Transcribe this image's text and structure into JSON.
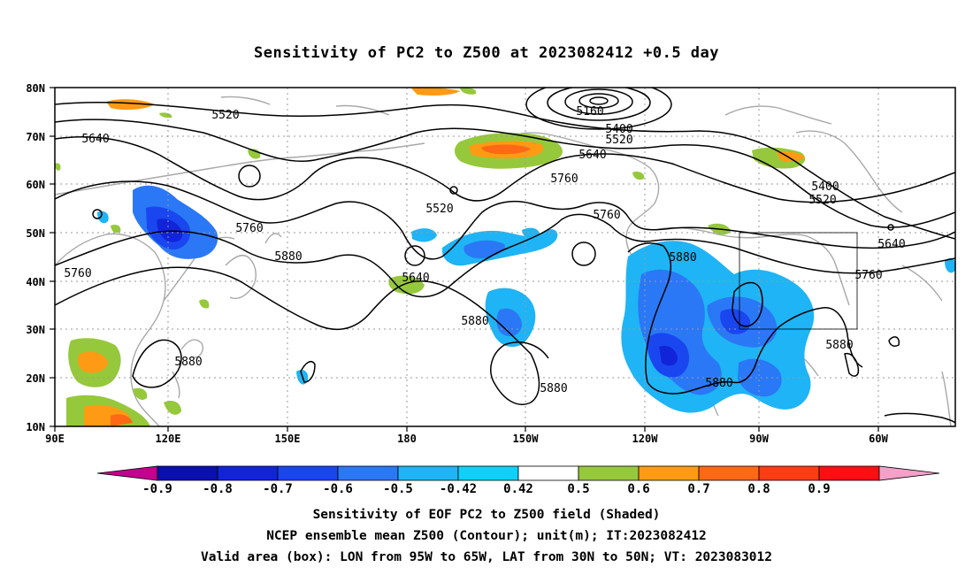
{
  "title": "Sensitivity of PC2 to Z500 at 2023082412 +0.5 day",
  "lat_labels": [
    "80N",
    "70N",
    "60N",
    "50N",
    "40N",
    "30N",
    "20N",
    "10N"
  ],
  "lon_labels": [
    "90E",
    "120E",
    "150E",
    "180",
    "150W",
    "120W",
    "90W",
    "60W"
  ],
  "contour_labels": [
    "5520",
    "5640",
    "5160",
    "5400",
    "5520",
    "5640",
    "5760",
    "5520",
    "5760",
    "5400",
    "5520",
    "5640",
    "5760",
    "5880",
    "5640",
    "5760",
    "5880",
    "5880",
    "5880",
    "5880",
    "5880",
    "5880",
    "5760"
  ],
  "colorbar": {
    "labels": [
      "-0.9",
      "-0.8",
      "-0.7",
      "-0.6",
      "-0.5",
      "-0.42",
      "0.42",
      "0.5",
      "0.6",
      "0.7",
      "0.8",
      "0.9"
    ],
    "colors": [
      "#c3008f",
      "#0a0fb0",
      "#1224d8",
      "#1a46f0",
      "#2a78f5",
      "#1fb4f5",
      "#0fd0f8",
      "#ffffff",
      "#96c83c",
      "#ff9a14",
      "#ff6814",
      "#ff3c14",
      "#ff0f14",
      "#f4a0c8"
    ]
  },
  "valid_box": {
    "lon": "95W to 65W",
    "lat": "30N to 50N"
  },
  "footer": [
    "Sensitivity of EOF PC2 to Z500 field (Shaded)",
    "NCEP ensemble mean Z500 (Contour); unit(m); IT:2023082412",
    "Valid area (box): LON from 95W to 65W, LAT from 30N to 50N; VT: 2023083012"
  ]
}
